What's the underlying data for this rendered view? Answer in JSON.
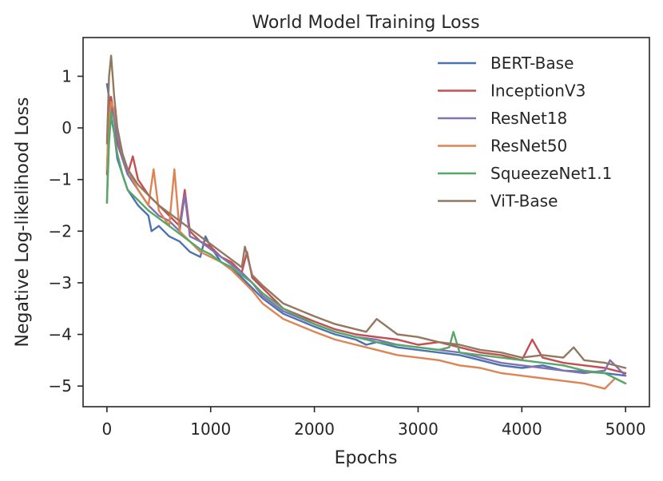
{
  "chart_data": {
    "type": "line",
    "title": "World Model Training Loss",
    "xlabel": "Epochs",
    "ylabel": "Negative Log-likelihood Loss",
    "xlim": [
      -230,
      5230
    ],
    "ylim": [
      -5.4,
      1.75
    ],
    "xticks": [
      0,
      1000,
      2000,
      3000,
      4000,
      5000
    ],
    "xtick_labels": [
      "0",
      "1000",
      "2000",
      "3000",
      "4000",
      "5000"
    ],
    "yticks": [
      1,
      0,
      -1,
      -2,
      -3,
      -4,
      -5
    ],
    "ytick_labels": [
      "1",
      "0",
      "−1",
      "−2",
      "−3",
      "−4",
      "−5"
    ],
    "legend_position": "top-right",
    "grid": false,
    "series": [
      {
        "name": "BERT-Base",
        "color": "#4c72b0",
        "x": [
          0,
          20,
          40,
          70,
          100,
          150,
          200,
          300,
          400,
          430,
          500,
          600,
          700,
          800,
          900,
          950,
          1000,
          1100,
          1200,
          1300,
          1400,
          1500,
          1700,
          2000,
          2200,
          2400,
          2500,
          2600,
          2800,
          3000,
          3200,
          3400,
          3600,
          3800,
          4000,
          4200,
          4400,
          4600,
          4800,
          5000
        ],
        "y": [
          0.85,
          0.6,
          0.2,
          -0.1,
          -0.6,
          -0.9,
          -1.2,
          -1.5,
          -1.7,
          -2.0,
          -1.9,
          -2.1,
          -2.2,
          -2.4,
          -2.5,
          -2.1,
          -2.3,
          -2.6,
          -2.7,
          -2.9,
          -3.1,
          -3.3,
          -3.6,
          -3.85,
          -4.0,
          -4.1,
          -4.2,
          -4.15,
          -4.25,
          -4.3,
          -4.35,
          -4.4,
          -4.5,
          -4.6,
          -4.65,
          -4.6,
          -4.7,
          -4.72,
          -4.75,
          -4.8
        ]
      },
      {
        "name": "InceptionV3",
        "color": "#c44e52",
        "x": [
          0,
          20,
          40,
          70,
          100,
          150,
          200,
          250,
          300,
          400,
          500,
          600,
          700,
          750,
          800,
          900,
          1000,
          1100,
          1200,
          1300,
          1350,
          1400,
          1500,
          1700,
          2000,
          2200,
          2400,
          2600,
          2800,
          3000,
          3200,
          3400,
          3600,
          3800,
          4000,
          4100,
          4200,
          4400,
          4600,
          4800,
          5000
        ],
        "y": [
          -0.9,
          0.5,
          0.6,
          0.2,
          -0.3,
          -0.6,
          -0.9,
          -0.55,
          -1.0,
          -1.3,
          -1.5,
          -1.7,
          -1.9,
          -1.2,
          -2.0,
          -2.2,
          -2.3,
          -2.5,
          -2.6,
          -2.8,
          -2.4,
          -2.9,
          -3.1,
          -3.5,
          -3.75,
          -3.9,
          -4.0,
          -4.05,
          -4.1,
          -4.2,
          -4.15,
          -4.25,
          -4.35,
          -4.4,
          -4.5,
          -4.1,
          -4.45,
          -4.55,
          -4.6,
          -4.65,
          -4.75
        ]
      },
      {
        "name": "ResNet18",
        "color": "#8172b2",
        "x": [
          0,
          20,
          40,
          70,
          100,
          150,
          200,
          300,
          400,
          500,
          600,
          700,
          750,
          800,
          900,
          1000,
          1100,
          1200,
          1300,
          1400,
          1500,
          1700,
          2000,
          2200,
          2400,
          2600,
          2800,
          3000,
          3200,
          3400,
          3600,
          3800,
          4000,
          4200,
          4400,
          4600,
          4800,
          4850,
          5000
        ],
        "y": [
          -1.45,
          0.1,
          0.4,
          0.2,
          -0.2,
          -0.6,
          -0.9,
          -1.2,
          -1.5,
          -1.7,
          -1.8,
          -2.0,
          -1.3,
          -2.1,
          -2.2,
          -2.35,
          -2.5,
          -2.65,
          -2.8,
          -3.0,
          -3.25,
          -3.55,
          -3.8,
          -3.95,
          -4.05,
          -4.1,
          -4.2,
          -4.25,
          -4.3,
          -4.35,
          -4.45,
          -4.55,
          -4.6,
          -4.65,
          -4.7,
          -4.75,
          -4.7,
          -4.5,
          -4.8
        ]
      },
      {
        "name": "ResNet50",
        "color": "#dd8452",
        "x": [
          0,
          20,
          40,
          70,
          100,
          150,
          200,
          300,
          400,
          450,
          500,
          600,
          650,
          700,
          800,
          900,
          1000,
          1100,
          1200,
          1300,
          1400,
          1500,
          1700,
          2000,
          2200,
          2400,
          2600,
          2800,
          3000,
          3200,
          3400,
          3600,
          3800,
          4000,
          4200,
          4400,
          4600,
          4800,
          4900,
          5000
        ],
        "y": [
          -0.8,
          0.2,
          0.5,
          0.35,
          0.0,
          -0.5,
          -0.8,
          -1.2,
          -1.5,
          -0.8,
          -1.6,
          -1.9,
          -0.8,
          -2.0,
          -2.2,
          -2.4,
          -2.5,
          -2.6,
          -2.75,
          -2.95,
          -3.15,
          -3.4,
          -3.7,
          -3.95,
          -4.1,
          -4.2,
          -4.3,
          -4.4,
          -4.45,
          -4.5,
          -4.6,
          -4.65,
          -4.75,
          -4.8,
          -4.85,
          -4.9,
          -4.95,
          -5.05,
          -4.85,
          -4.95
        ]
      },
      {
        "name": "SqueezeNet1.1",
        "color": "#55a868",
        "x": [
          0,
          20,
          40,
          70,
          100,
          150,
          200,
          300,
          400,
          500,
          600,
          700,
          800,
          900,
          1000,
          1100,
          1200,
          1300,
          1400,
          1500,
          1700,
          2000,
          2200,
          2400,
          2600,
          2800,
          3000,
          3200,
          3300,
          3340,
          3400,
          3600,
          3800,
          4000,
          4200,
          4400,
          4600,
          4800,
          5000
        ],
        "y": [
          -1.45,
          -0.3,
          0.3,
          -0.1,
          -0.5,
          -0.9,
          -1.2,
          -1.4,
          -1.6,
          -1.75,
          -1.9,
          -2.05,
          -2.2,
          -2.35,
          -2.45,
          -2.6,
          -2.7,
          -2.85,
          -3.0,
          -3.2,
          -3.5,
          -3.8,
          -3.95,
          -4.05,
          -4.15,
          -4.2,
          -4.25,
          -4.3,
          -4.25,
          -3.95,
          -4.35,
          -4.4,
          -4.45,
          -4.5,
          -4.55,
          -4.6,
          -4.7,
          -4.75,
          -4.95
        ]
      },
      {
        "name": "ViT-Base",
        "color": "#937860",
        "x": [
          0,
          20,
          40,
          70,
          100,
          150,
          200,
          300,
          400,
          500,
          600,
          700,
          800,
          900,
          1000,
          1100,
          1200,
          1300,
          1330,
          1400,
          1500,
          1700,
          2000,
          2200,
          2400,
          2500,
          2600,
          2800,
          3000,
          3200,
          3400,
          3600,
          3800,
          4000,
          4200,
          4400,
          4500,
          4600,
          4800,
          5000
        ],
        "y": [
          -0.3,
          1.0,
          1.4,
          0.6,
          0.0,
          -0.5,
          -0.8,
          -1.1,
          -1.3,
          -1.5,
          -1.65,
          -1.8,
          -1.95,
          -2.1,
          -2.25,
          -2.4,
          -2.55,
          -2.7,
          -2.3,
          -2.85,
          -3.05,
          -3.4,
          -3.65,
          -3.8,
          -3.9,
          -3.95,
          -3.7,
          -4.0,
          -4.05,
          -4.15,
          -4.2,
          -4.3,
          -4.35,
          -4.45,
          -4.4,
          -4.45,
          -4.25,
          -4.5,
          -4.55,
          -4.65
        ]
      }
    ]
  }
}
